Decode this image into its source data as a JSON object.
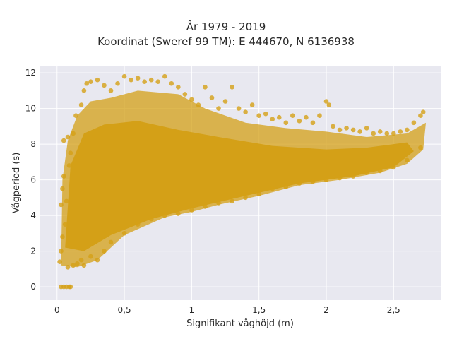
{
  "chart_data": {
    "type": "scatter",
    "title": "År 1979 - 2019",
    "subtitle": "Koordinat (Sweref 99 TM): E 444670, N 6136938",
    "xlabel": "Signifikant våghöjd (m)",
    "ylabel": "Vågperiod (s)",
    "xlim": [
      -0.13,
      2.85
    ],
    "ylim": [
      -0.75,
      12.4
    ],
    "x_ticks": [
      0,
      0.5,
      1,
      1.5,
      2,
      2.5
    ],
    "x_tick_labels": [
      "0",
      "0,5",
      "1",
      "1,5",
      "2",
      "2,5"
    ],
    "y_ticks": [
      0,
      2,
      4,
      6,
      8,
      10,
      12
    ],
    "y_tick_labels": [
      "0",
      "2",
      "4",
      "6",
      "8",
      "10",
      "12"
    ],
    "grid": true,
    "background": "#e8e8f0",
    "marker_color": "#d4a017",
    "series": [
      {
        "points": [
          [
            0.03,
            0.0
          ],
          [
            0.05,
            0.0
          ],
          [
            0.07,
            0.0
          ],
          [
            0.09,
            0.0
          ],
          [
            0.1,
            0.0
          ],
          [
            0.02,
            1.4
          ],
          [
            0.03,
            2.0
          ],
          [
            0.04,
            2.8
          ],
          [
            0.03,
            4.6
          ],
          [
            0.04,
            5.5
          ],
          [
            0.05,
            6.2
          ],
          [
            0.05,
            8.2
          ],
          [
            0.08,
            8.4
          ],
          [
            0.08,
            1.1
          ],
          [
            0.12,
            1.2
          ],
          [
            0.15,
            1.3
          ],
          [
            0.18,
            1.5
          ],
          [
            0.06,
            3.5
          ],
          [
            0.07,
            4.8
          ],
          [
            0.09,
            6.8
          ],
          [
            0.1,
            7.5
          ],
          [
            0.12,
            8.6
          ],
          [
            0.14,
            9.6
          ],
          [
            0.18,
            10.2
          ],
          [
            0.2,
            11.0
          ],
          [
            0.22,
            11.4
          ],
          [
            0.25,
            11.5
          ],
          [
            0.3,
            11.6
          ],
          [
            0.35,
            11.3
          ],
          [
            0.4,
            11.0
          ],
          [
            0.45,
            11.4
          ],
          [
            0.5,
            11.8
          ],
          [
            0.55,
            11.6
          ],
          [
            0.6,
            11.7
          ],
          [
            0.65,
            11.5
          ],
          [
            0.7,
            11.6
          ],
          [
            0.75,
            11.5
          ],
          [
            0.8,
            11.8
          ],
          [
            0.85,
            11.4
          ],
          [
            0.9,
            11.2
          ],
          [
            0.95,
            10.8
          ],
          [
            1.0,
            10.5
          ],
          [
            1.05,
            10.2
          ],
          [
            1.1,
            11.2
          ],
          [
            1.15,
            10.6
          ],
          [
            1.2,
            10.0
          ],
          [
            1.25,
            10.4
          ],
          [
            1.3,
            11.2
          ],
          [
            1.35,
            10.0
          ],
          [
            1.4,
            9.8
          ],
          [
            1.45,
            10.2
          ],
          [
            1.5,
            9.6
          ],
          [
            1.55,
            9.7
          ],
          [
            1.6,
            9.4
          ],
          [
            1.65,
            9.5
          ],
          [
            1.7,
            9.2
          ],
          [
            1.75,
            9.6
          ],
          [
            1.8,
            9.3
          ],
          [
            1.85,
            9.5
          ],
          [
            1.9,
            9.2
          ],
          [
            1.95,
            9.6
          ],
          [
            2.0,
            10.4
          ],
          [
            2.02,
            10.2
          ],
          [
            2.05,
            9.0
          ],
          [
            2.1,
            8.8
          ],
          [
            2.15,
            8.9
          ],
          [
            2.2,
            8.8
          ],
          [
            2.25,
            8.7
          ],
          [
            2.3,
            8.9
          ],
          [
            2.35,
            8.6
          ],
          [
            2.4,
            8.7
          ],
          [
            2.45,
            8.6
          ],
          [
            2.5,
            8.6
          ],
          [
            2.55,
            8.7
          ],
          [
            2.6,
            8.8
          ],
          [
            2.65,
            9.2
          ],
          [
            2.7,
            9.6
          ],
          [
            2.72,
            9.8
          ],
          [
            0.3,
            1.5
          ],
          [
            0.35,
            2.0
          ],
          [
            0.4,
            2.5
          ],
          [
            0.5,
            3.0
          ],
          [
            0.6,
            3.5
          ],
          [
            0.7,
            3.8
          ],
          [
            0.8,
            4.0
          ],
          [
            0.9,
            4.1
          ],
          [
            1.0,
            4.3
          ],
          [
            1.1,
            4.5
          ],
          [
            1.2,
            4.7
          ],
          [
            1.3,
            4.8
          ],
          [
            1.4,
            5.0
          ],
          [
            1.5,
            5.2
          ],
          [
            1.6,
            5.5
          ],
          [
            1.7,
            5.6
          ],
          [
            1.8,
            5.8
          ],
          [
            1.9,
            5.9
          ],
          [
            2.0,
            6.0
          ],
          [
            2.1,
            6.1
          ],
          [
            2.2,
            6.2
          ],
          [
            2.3,
            6.4
          ],
          [
            2.4,
            6.5
          ],
          [
            2.5,
            6.7
          ],
          [
            2.6,
            7.1
          ],
          [
            2.7,
            7.8
          ],
          [
            0.2,
            1.2
          ],
          [
            0.25,
            1.7
          ]
        ]
      }
    ]
  }
}
